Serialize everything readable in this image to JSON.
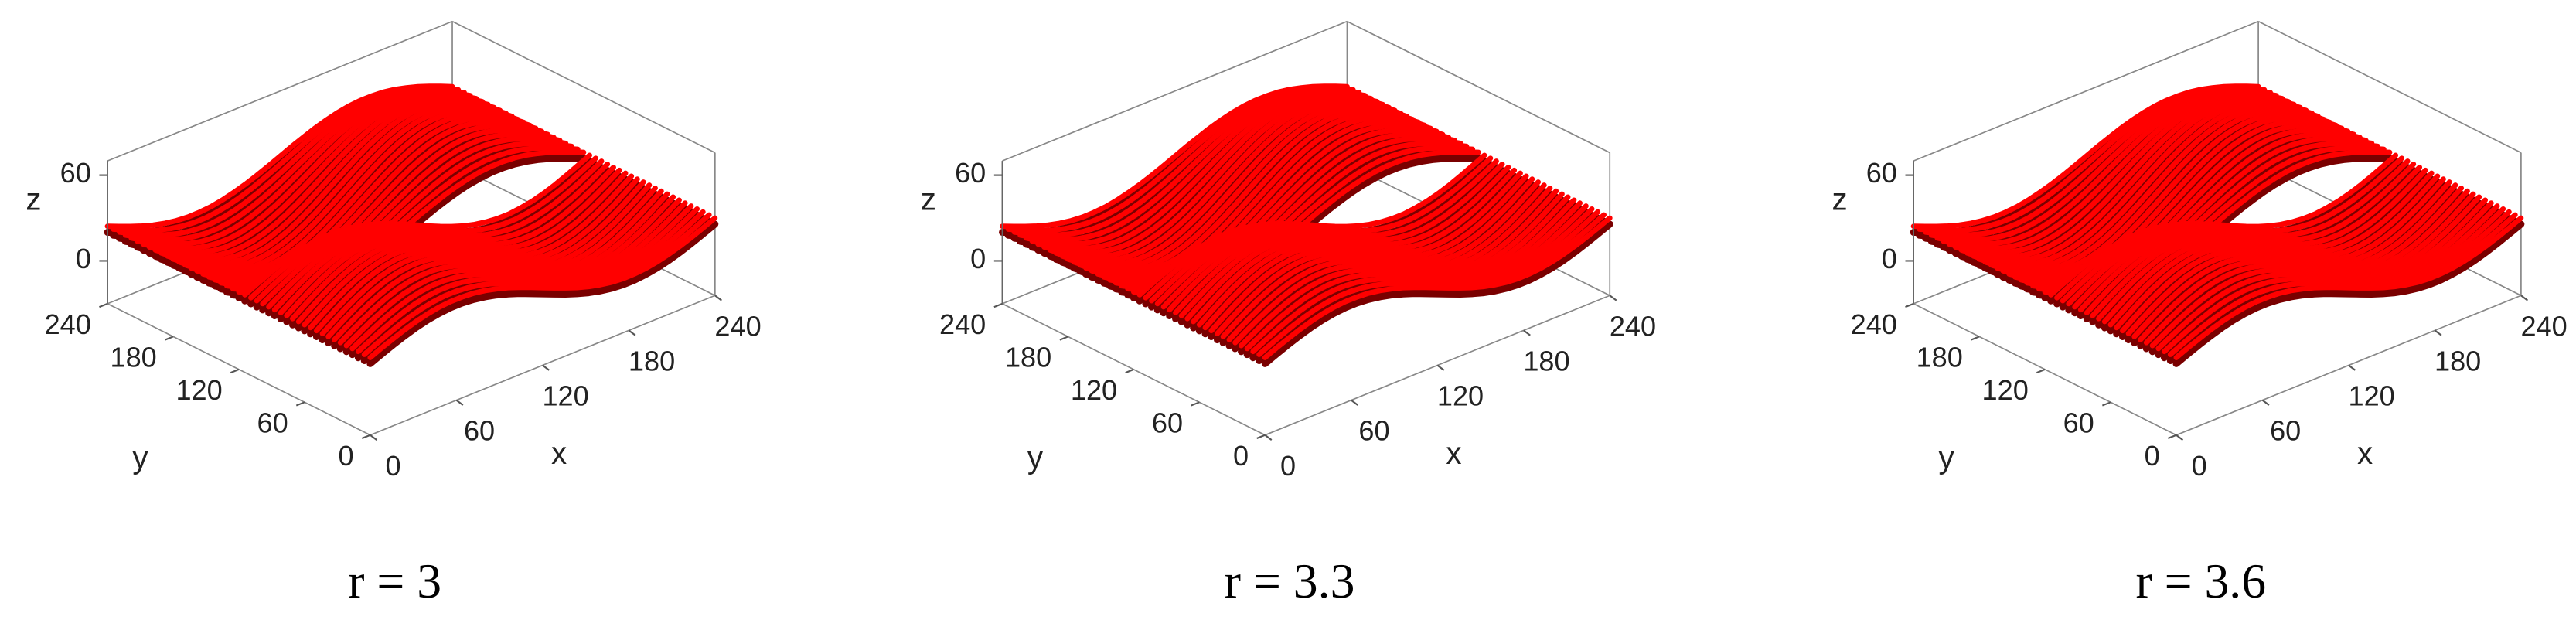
{
  "chart_data": [
    {
      "type": "surface3d",
      "title": "r = 3",
      "xlabel": "x",
      "ylabel": "y",
      "zlabel": "z",
      "xlim": [
        0,
        240
      ],
      "ylim": [
        0,
        240
      ],
      "zlim": [
        -30,
        70
      ],
      "xticks": [
        0,
        60,
        120,
        180,
        240
      ],
      "yticks": [
        0,
        60,
        120,
        180,
        240
      ],
      "zticks": [
        0,
        60
      ],
      "color": "#ff0000"
    },
    {
      "type": "surface3d",
      "title": "r = 3.3",
      "xlabel": "x",
      "ylabel": "y",
      "zlabel": "z",
      "xlim": [
        0,
        240
      ],
      "ylim": [
        0,
        240
      ],
      "zlim": [
        -30,
        70
      ],
      "xticks": [
        0,
        60,
        120,
        180,
        240
      ],
      "yticks": [
        0,
        60,
        120,
        180,
        240
      ],
      "zticks": [
        0,
        60
      ],
      "color": "#ff0000"
    },
    {
      "type": "surface3d",
      "title": "r = 3.6",
      "xlabel": "x",
      "ylabel": "y",
      "zlabel": "z",
      "xlim": [
        0,
        240
      ],
      "ylim": [
        0,
        240
      ],
      "zlim": [
        -30,
        70
      ],
      "xticks": [
        0,
        60,
        120,
        180,
        240
      ],
      "yticks": [
        0,
        60,
        120,
        180,
        240
      ],
      "zticks": [
        0,
        60
      ],
      "color": "#ff0000"
    }
  ]
}
